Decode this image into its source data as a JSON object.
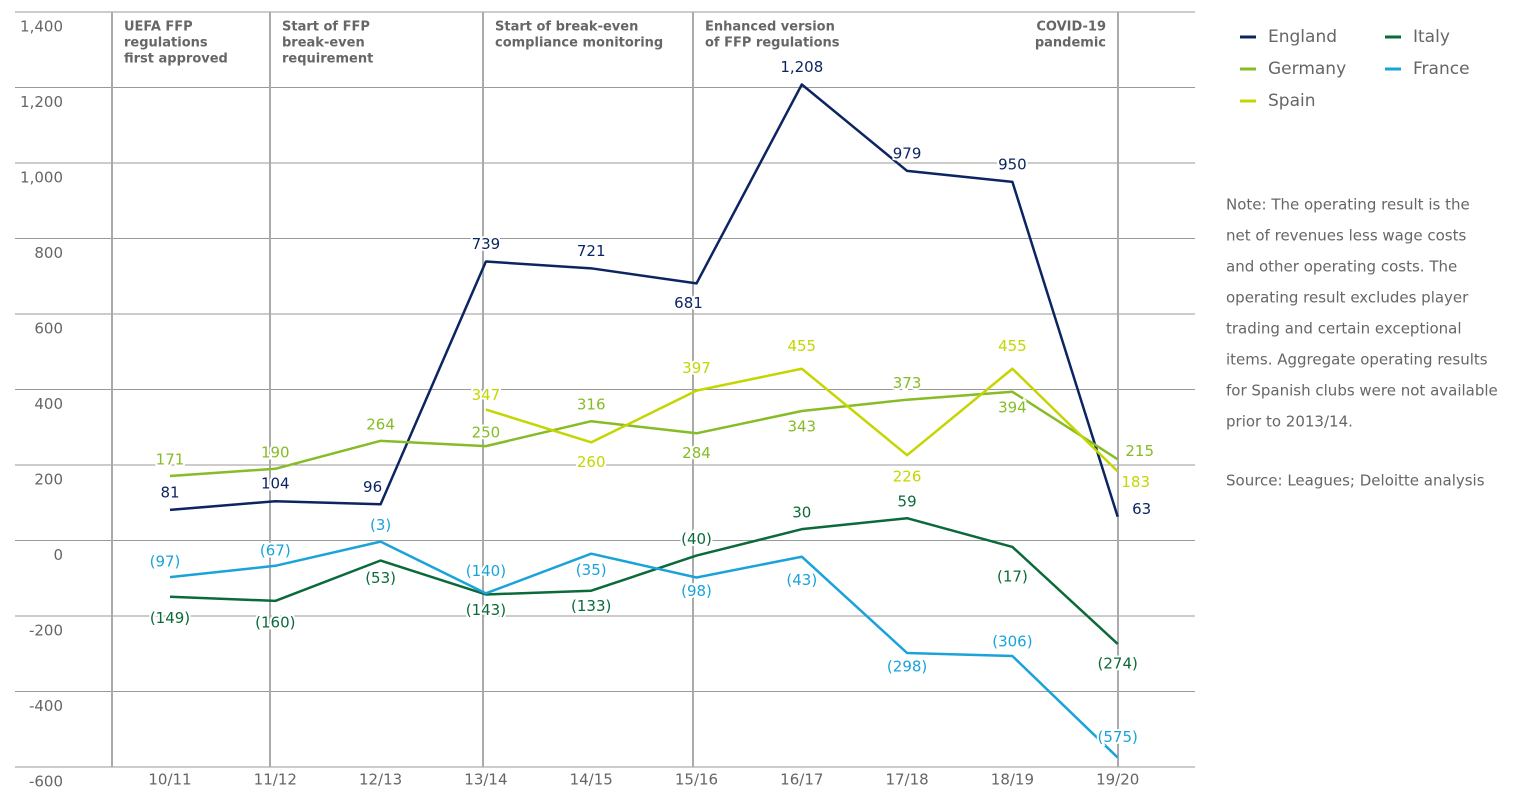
{
  "chart_data": {
    "type": "line",
    "categories": [
      "10/11",
      "11/12",
      "12/13",
      "13/14",
      "14/15",
      "15/16",
      "16/17",
      "17/18",
      "18/19",
      "19/20"
    ],
    "series": [
      {
        "name": "England",
        "color": "#0c2461",
        "values": [
          81,
          104,
          96,
          739,
          721,
          681,
          1208,
          979,
          950,
          63
        ],
        "value_labels": [
          "81",
          "104",
          "96",
          "739",
          "721",
          "681",
          "1,208",
          "979",
          "950",
          "63"
        ]
      },
      {
        "name": "Italy",
        "color": "#0b6a3a",
        "values": [
          -149,
          -160,
          -53,
          -143,
          -133,
          -40,
          30,
          59,
          -17,
          -274
        ],
        "value_labels": [
          "(149)",
          "(160)",
          "(53)",
          "(143)",
          "(133)",
          "(40)",
          "30",
          "59",
          "(17)",
          "(274)"
        ]
      },
      {
        "name": "Germany",
        "color": "#86bc25",
        "values": [
          171,
          190,
          264,
          250,
          316,
          284,
          343,
          373,
          394,
          215
        ]
      },
      {
        "name": "France",
        "color": "#1aa3d9",
        "values": [
          -97,
          -67,
          -3,
          -140,
          -35,
          -98,
          -43,
          -298,
          -306,
          -575
        ],
        "value_labels": [
          "(97)",
          "(67)",
          "(3)",
          "(140)",
          "(35)",
          "(98)",
          "(43)",
          "(298)",
          "(306)",
          "(575)"
        ]
      },
      {
        "name": "Spain",
        "color": "#c4d600",
        "values": [
          null,
          null,
          null,
          347,
          260,
          397,
          455,
          226,
          455,
          183
        ]
      }
    ],
    "ylim": [
      -600,
      1400
    ],
    "yticks": [
      -600,
      -400,
      -200,
      0,
      200,
      400,
      600,
      800,
      {
        "value": 1000,
        "label": "1,000"
      },
      {
        "value": 1200,
        "label": "1,200"
      },
      {
        "value": 1400,
        "label": "1,400"
      }
    ],
    "grid": true,
    "annotations": [
      [
        "UEFA FFP",
        "regulations",
        "first approved"
      ],
      [
        "Start of FFP",
        "break-even",
        "requirement"
      ],
      [
        "Start of break-even",
        "compliance monitoring"
      ],
      [
        "Enhanced version",
        "of FFP regulations"
      ],
      [
        "COVID-19",
        "pandemic"
      ]
    ],
    "note": [
      "Note: The operating result is the",
      "net of revenues less wage costs",
      "and other operating costs. The",
      "operating result excludes player",
      "trading and certain exceptional",
      "items. Aggregate operating results",
      "for Spanish clubs were not available",
      "prior to 2013/14."
    ],
    "source": "Source: Leagues; Deloitte analysis"
  }
}
